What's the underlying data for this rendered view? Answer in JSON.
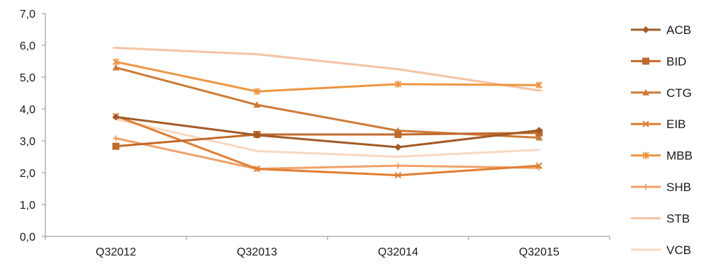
{
  "chart_data": {
    "type": "line",
    "categories": [
      "Q32012",
      "Q32013",
      "Q32014",
      "Q32015"
    ],
    "ylim": [
      0,
      7
    ],
    "yticks": [
      "0,0",
      "1,0",
      "2,0",
      "3,0",
      "4,0",
      "5,0",
      "6,0",
      "7,0"
    ],
    "grid": false,
    "legend_position": "right",
    "series": [
      {
        "name": "ACB",
        "values": [
          3.75,
          3.18,
          2.8,
          3.33
        ],
        "color": "#a35a27",
        "marker": "diamond"
      },
      {
        "name": "BID",
        "values": [
          2.83,
          3.2,
          3.2,
          3.25
        ],
        "color": "#c16a2c",
        "marker": "square"
      },
      {
        "name": "CTG",
        "values": [
          5.3,
          4.13,
          3.32,
          3.1
        ],
        "color": "#cc7b37",
        "marker": "triangle"
      },
      {
        "name": "EIB",
        "values": [
          3.78,
          2.12,
          1.92,
          2.22
        ],
        "color": "#e07f33",
        "marker": "x"
      },
      {
        "name": "MBB",
        "values": [
          5.48,
          4.55,
          4.78,
          4.75
        ],
        "color": "#ee9640",
        "marker": "star"
      },
      {
        "name": "SHB",
        "values": [
          3.08,
          2.12,
          2.22,
          2.15
        ],
        "color": "#f0a269",
        "marker": "plus"
      },
      {
        "name": "STB",
        "values": [
          5.92,
          5.72,
          5.25,
          4.58
        ],
        "color": "#f5c3a3",
        "marker": "dash"
      },
      {
        "name": "VCB",
        "values": [
          3.68,
          2.68,
          2.5,
          2.72
        ],
        "color": "#f8d8c2",
        "marker": "none"
      }
    ]
  }
}
